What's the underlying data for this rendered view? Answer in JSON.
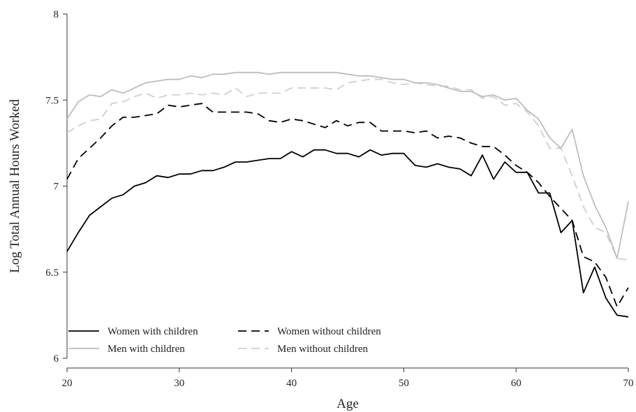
{
  "chart_data": {
    "type": "line",
    "xlabel": "Age",
    "ylabel": "Log Total Annual Hours Worked",
    "xlim": [
      20,
      70
    ],
    "ylim": [
      6,
      8
    ],
    "xticks": [
      20,
      30,
      40,
      50,
      60,
      70
    ],
    "yticks": [
      6,
      6.5,
      7,
      7.5,
      8
    ],
    "xtick_labels": [
      "20",
      "30",
      "40",
      "50",
      "60",
      "70"
    ],
    "ytick_labels": [
      "6",
      "6.5",
      "7",
      "7.5",
      "8"
    ],
    "grid": false,
    "legend_position": "bottom-left",
    "x": [
      20,
      21,
      22,
      23,
      24,
      25,
      26,
      27,
      28,
      29,
      30,
      31,
      32,
      33,
      34,
      35,
      36,
      37,
      38,
      39,
      40,
      41,
      42,
      43,
      44,
      45,
      46,
      47,
      48,
      49,
      50,
      51,
      52,
      53,
      54,
      55,
      56,
      57,
      58,
      59,
      60,
      61,
      62,
      63,
      64,
      65,
      66,
      67,
      68,
      69,
      70
    ],
    "series": [
      {
        "name": "Women with children",
        "color": "#000000",
        "dash": "solid",
        "values": [
          6.62,
          6.73,
          6.83,
          6.88,
          6.93,
          6.95,
          7.0,
          7.02,
          7.06,
          7.05,
          7.07,
          7.07,
          7.09,
          7.09,
          7.11,
          7.14,
          7.14,
          7.15,
          7.16,
          7.16,
          7.2,
          7.17,
          7.21,
          7.21,
          7.19,
          7.19,
          7.17,
          7.21,
          7.18,
          7.19,
          7.19,
          7.12,
          7.11,
          7.13,
          7.11,
          7.1,
          7.06,
          7.18,
          7.04,
          7.14,
          7.08,
          7.08,
          6.96,
          6.96,
          6.73,
          6.8,
          6.38,
          6.53,
          6.35,
          6.25,
          6.24
        ]
      },
      {
        "name": "Women without children",
        "color": "#000000",
        "dash": "dashed",
        "values": [
          7.04,
          7.16,
          7.22,
          7.28,
          7.35,
          7.4,
          7.4,
          7.41,
          7.42,
          7.47,
          7.46,
          7.47,
          7.48,
          7.43,
          7.43,
          7.43,
          7.43,
          7.42,
          7.38,
          7.37,
          7.39,
          7.38,
          7.36,
          7.34,
          7.38,
          7.35,
          7.37,
          7.37,
          7.32,
          7.32,
          7.32,
          7.31,
          7.32,
          7.28,
          7.29,
          7.28,
          7.25,
          7.23,
          7.23,
          7.18,
          7.12,
          7.08,
          7.02,
          6.94,
          6.87,
          6.8,
          6.59,
          6.56,
          6.47,
          6.3,
          6.41
        ]
      },
      {
        "name": "Men with children",
        "color": "#bdbdbd",
        "dash": "solid",
        "values": [
          7.39,
          7.49,
          7.53,
          7.52,
          7.56,
          7.54,
          7.57,
          7.6,
          7.61,
          7.62,
          7.62,
          7.64,
          7.63,
          7.65,
          7.65,
          7.66,
          7.66,
          7.66,
          7.65,
          7.66,
          7.66,
          7.66,
          7.66,
          7.66,
          7.66,
          7.65,
          7.64,
          7.64,
          7.63,
          7.62,
          7.62,
          7.6,
          7.6,
          7.59,
          7.57,
          7.55,
          7.55,
          7.52,
          7.53,
          7.5,
          7.51,
          7.44,
          7.39,
          7.28,
          7.22,
          7.33,
          7.06,
          6.89,
          6.76,
          6.58,
          6.91
        ]
      },
      {
        "name": "Men without children",
        "color": "#cfcfcf",
        "dash": "dashed",
        "values": [
          7.31,
          7.35,
          7.38,
          7.39,
          7.48,
          7.49,
          7.52,
          7.54,
          7.51,
          7.53,
          7.53,
          7.54,
          7.53,
          7.54,
          7.53,
          7.57,
          7.52,
          7.54,
          7.54,
          7.54,
          7.57,
          7.57,
          7.57,
          7.57,
          7.56,
          7.6,
          7.61,
          7.62,
          7.62,
          7.6,
          7.59,
          7.6,
          7.59,
          7.58,
          7.58,
          7.56,
          7.56,
          7.51,
          7.52,
          7.47,
          7.48,
          7.43,
          7.35,
          7.22,
          7.22,
          7.06,
          6.88,
          6.76,
          6.73,
          6.58,
          6.57
        ]
      }
    ]
  }
}
